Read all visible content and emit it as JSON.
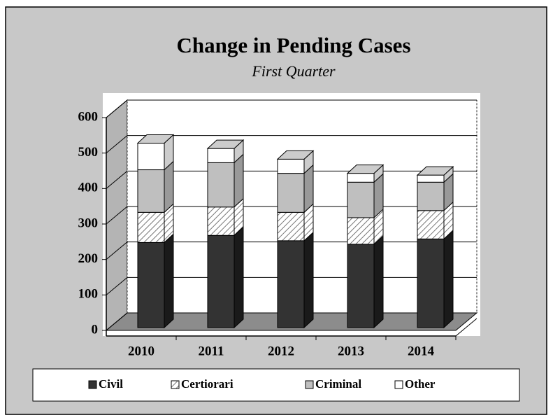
{
  "chart_data": {
    "type": "bar3d_stacked",
    "title": "Change in Pending Cases",
    "subtitle": "First Quarter",
    "categories": [
      "2010",
      "2011",
      "2012",
      "2013",
      "2014"
    ],
    "series": [
      {
        "name": "Civil",
        "color": "#333333",
        "values": [
          240,
          260,
          245,
          235,
          250
        ]
      },
      {
        "name": "Certiorari",
        "color": "#ffffff",
        "pattern": "hatch",
        "values": [
          85,
          80,
          80,
          75,
          80
        ]
      },
      {
        "name": "Criminal",
        "color": "#bfbfbf",
        "values": [
          120,
          125,
          110,
          100,
          80
        ]
      },
      {
        "name": "Other",
        "color": "#ffffff",
        "values": [
          75,
          40,
          40,
          25,
          20
        ]
      }
    ],
    "ylim": [
      0,
      600
    ],
    "yticks": [
      0,
      100,
      200,
      300,
      400,
      500,
      600
    ],
    "grid": true,
    "legend": "bottom"
  }
}
